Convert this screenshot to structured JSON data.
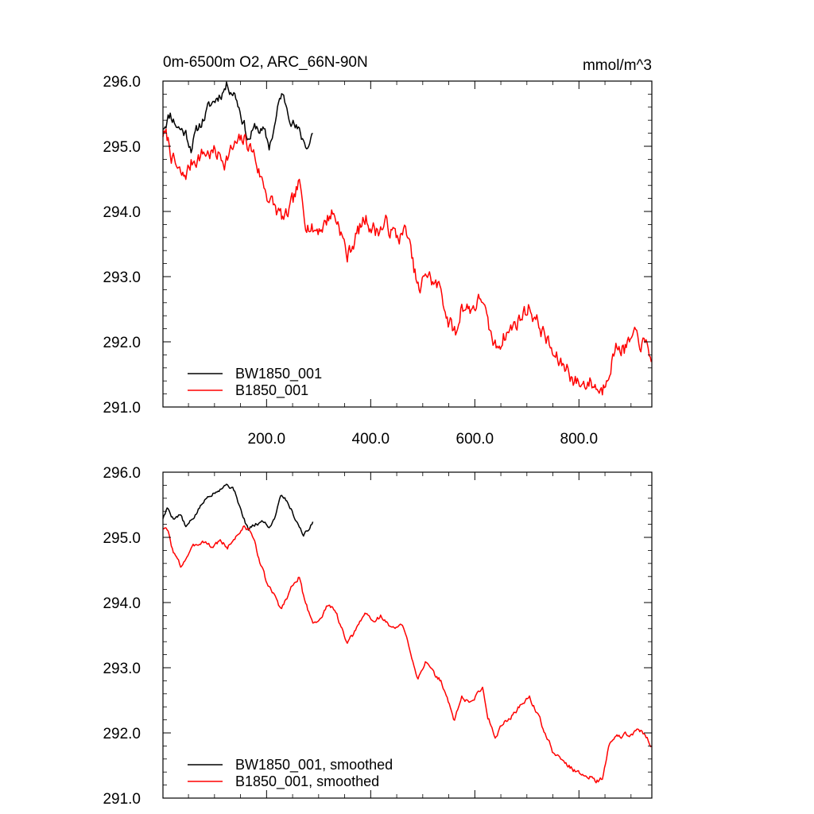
{
  "chart_data": [
    {
      "type": "line",
      "title": "0m-6500m O2, ARC_66N-90N",
      "units": "mmol/m^3",
      "xlim": [
        1,
        940
      ],
      "ylim": [
        291.0,
        296.0
      ],
      "xticks": [
        200,
        400,
        600,
        800
      ],
      "xtick_labels": [
        "200.0",
        "400.0",
        "600.0",
        "800.0"
      ],
      "yticks": [
        291,
        292,
        293,
        294,
        295,
        296
      ],
      "ytick_labels": [
        "291.0",
        "292.0",
        "293.0",
        "294.0",
        "295.0",
        "296.0"
      ],
      "legend_position": "bottom-left",
      "series": [
        {
          "name": "BW1850_001",
          "color": "#000000",
          "noise": 0.16,
          "seed": 11,
          "anchors": [
            [
              1,
              295.3
            ],
            [
              15,
              295.5
            ],
            [
              30,
              295.3
            ],
            [
              45,
              295.2
            ],
            [
              55,
              295.0
            ],
            [
              70,
              295.3
            ],
            [
              90,
              295.6
            ],
            [
              110,
              295.8
            ],
            [
              125,
              295.95
            ],
            [
              140,
              295.8
            ],
            [
              155,
              295.4
            ],
            [
              165,
              295.1
            ],
            [
              180,
              295.3
            ],
            [
              195,
              295.2
            ],
            [
              205,
              295.0
            ],
            [
              215,
              295.3
            ],
            [
              228,
              295.8
            ],
            [
              240,
              295.6
            ],
            [
              255,
              295.3
            ],
            [
              270,
              295.1
            ],
            [
              280,
              295.0
            ],
            [
              290,
              295.25
            ]
          ]
        },
        {
          "name": "B1850_001",
          "color": "#ff0000",
          "noise": 0.22,
          "seed": 7,
          "anchors": [
            [
              1,
              295.2
            ],
            [
              10,
              295.1
            ],
            [
              20,
              294.8
            ],
            [
              30,
              294.6
            ],
            [
              40,
              294.5
            ],
            [
              60,
              294.8
            ],
            [
              80,
              294.9
            ],
            [
              100,
              294.9
            ],
            [
              120,
              294.8
            ],
            [
              140,
              295.0
            ],
            [
              160,
              295.1
            ],
            [
              175,
              294.9
            ],
            [
              190,
              294.5
            ],
            [
              205,
              294.2
            ],
            [
              220,
              294.0
            ],
            [
              235,
              293.85
            ],
            [
              250,
              294.1
            ],
            [
              262,
              294.4
            ],
            [
              275,
              293.9
            ],
            [
              290,
              293.7
            ],
            [
              310,
              293.8
            ],
            [
              325,
              294.0
            ],
            [
              340,
              293.8
            ],
            [
              355,
              293.3
            ],
            [
              370,
              293.6
            ],
            [
              390,
              293.9
            ],
            [
              410,
              293.7
            ],
            [
              430,
              293.8
            ],
            [
              450,
              293.6
            ],
            [
              470,
              293.7
            ],
            [
              480,
              293.2
            ],
            [
              495,
              292.7
            ],
            [
              505,
              293.1
            ],
            [
              520,
              292.9
            ],
            [
              535,
              292.8
            ],
            [
              550,
              292.3
            ],
            [
              565,
              292.1
            ],
            [
              575,
              292.6
            ],
            [
              590,
              292.5
            ],
            [
              605,
              292.6
            ],
            [
              615,
              292.7
            ],
            [
              625,
              292.2
            ],
            [
              640,
              291.9
            ],
            [
              655,
              292.1
            ],
            [
              670,
              292.2
            ],
            [
              690,
              292.4
            ],
            [
              705,
              292.55
            ],
            [
              720,
              292.3
            ],
            [
              735,
              292.1
            ],
            [
              750,
              291.8
            ],
            [
              765,
              291.65
            ],
            [
              780,
              291.6
            ],
            [
              790,
              291.4
            ],
            [
              805,
              291.35
            ],
            [
              820,
              291.4
            ],
            [
              835,
              291.3
            ],
            [
              845,
              291.25
            ],
            [
              860,
              291.7
            ],
            [
              875,
              291.95
            ],
            [
              890,
              291.9
            ],
            [
              905,
              292.05
            ],
            [
              920,
              292.0
            ],
            [
              930,
              291.9
            ],
            [
              940,
              291.8
            ]
          ]
        }
      ]
    },
    {
      "type": "line",
      "title": "",
      "units": "",
      "xlim": [
        1,
        940
      ],
      "ylim": [
        291.0,
        296.0
      ],
      "xticks": [
        200,
        400,
        600,
        800
      ],
      "xtick_labels": [],
      "yticks": [
        291,
        292,
        293,
        294,
        295,
        296
      ],
      "ytick_labels": [
        "291.0",
        "292.0",
        "293.0",
        "294.0",
        "295.0",
        "296.0"
      ],
      "legend_position": "bottom-left",
      "series": [
        {
          "name": "BW1850_001, smoothed",
          "color": "#000000",
          "noise": 0.05,
          "seed": 5,
          "anchors": [
            [
              1,
              295.3
            ],
            [
              10,
              295.45
            ],
            [
              20,
              295.3
            ],
            [
              35,
              295.35
            ],
            [
              45,
              295.15
            ],
            [
              60,
              295.3
            ],
            [
              75,
              295.5
            ],
            [
              90,
              295.65
            ],
            [
              110,
              295.75
            ],
            [
              125,
              295.82
            ],
            [
              140,
              295.7
            ],
            [
              155,
              295.3
            ],
            [
              165,
              295.12
            ],
            [
              180,
              295.2
            ],
            [
              195,
              295.25
            ],
            [
              205,
              295.15
            ],
            [
              215,
              295.3
            ],
            [
              228,
              295.68
            ],
            [
              240,
              295.55
            ],
            [
              255,
              295.3
            ],
            [
              270,
              295.05
            ],
            [
              280,
              295.1
            ],
            [
              290,
              295.25
            ]
          ]
        },
        {
          "name": "B1850_001, smoothed",
          "color": "#ff0000",
          "noise": 0.06,
          "seed": 3,
          "anchors": [
            [
              1,
              295.15
            ],
            [
              10,
              295.1
            ],
            [
              20,
              294.8
            ],
            [
              35,
              294.55
            ],
            [
              50,
              294.75
            ],
            [
              65,
              294.9
            ],
            [
              80,
              294.95
            ],
            [
              95,
              294.85
            ],
            [
              110,
              294.95
            ],
            [
              125,
              294.85
            ],
            [
              140,
              295.0
            ],
            [
              155,
              295.15
            ],
            [
              170,
              295.1
            ],
            [
              185,
              294.7
            ],
            [
              200,
              294.3
            ],
            [
              215,
              294.1
            ],
            [
              228,
              293.9
            ],
            [
              240,
              294.1
            ],
            [
              255,
              294.35
            ],
            [
              262,
              294.4
            ],
            [
              275,
              293.95
            ],
            [
              290,
              293.7
            ],
            [
              305,
              293.75
            ],
            [
              320,
              294.0
            ],
            [
              335,
              293.8
            ],
            [
              355,
              293.35
            ],
            [
              370,
              293.55
            ],
            [
              390,
              293.85
            ],
            [
              405,
              293.7
            ],
            [
              420,
              293.8
            ],
            [
              440,
              293.6
            ],
            [
              460,
              293.65
            ],
            [
              475,
              293.3
            ],
            [
              490,
              292.85
            ],
            [
              505,
              293.1
            ],
            [
              520,
              292.9
            ],
            [
              535,
              292.8
            ],
            [
              548,
              292.5
            ],
            [
              560,
              292.2
            ],
            [
              575,
              292.55
            ],
            [
              590,
              292.45
            ],
            [
              605,
              292.6
            ],
            [
              615,
              292.7
            ],
            [
              625,
              292.25
            ],
            [
              640,
              291.95
            ],
            [
              655,
              292.15
            ],
            [
              670,
              292.25
            ],
            [
              690,
              292.45
            ],
            [
              705,
              292.55
            ],
            [
              720,
              292.3
            ],
            [
              735,
              292.0
            ],
            [
              750,
              291.7
            ],
            [
              765,
              291.6
            ],
            [
              780,
              291.5
            ],
            [
              795,
              291.4
            ],
            [
              810,
              291.35
            ],
            [
              820,
              291.35
            ],
            [
              832,
              291.25
            ],
            [
              845,
              291.3
            ],
            [
              858,
              291.8
            ],
            [
              870,
              291.95
            ],
            [
              885,
              291.95
            ],
            [
              900,
              292.0
            ],
            [
              915,
              292.05
            ],
            [
              930,
              291.95
            ],
            [
              940,
              291.8
            ]
          ]
        }
      ]
    }
  ]
}
